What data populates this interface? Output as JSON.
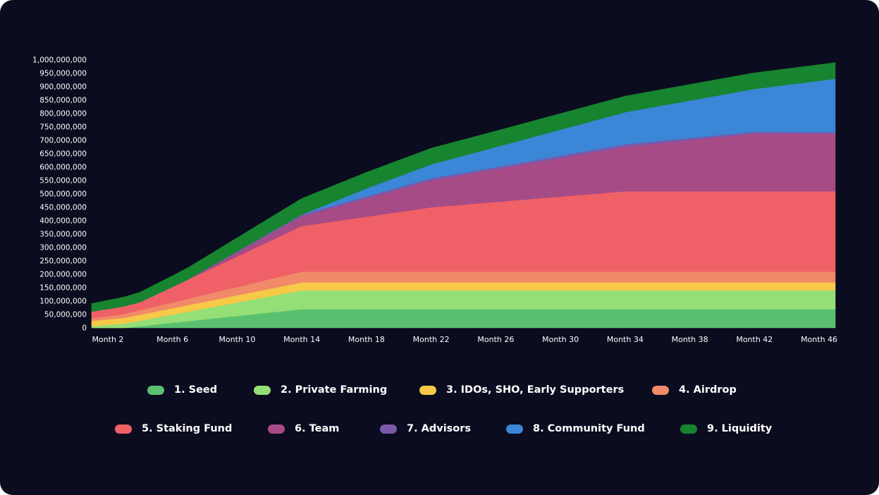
{
  "chart_data": {
    "type": "area",
    "stacked": true,
    "title": "",
    "xlabel": "",
    "ylabel": "",
    "grid": false,
    "x_start_month": 1,
    "x_end_month": 47,
    "ylim": [
      0,
      1000000000
    ],
    "y_ticks": [
      "1,000,000,000",
      "950,000,000",
      "900,000,000",
      "850,000,000",
      "800,000,000",
      "750,000,000",
      "700,000,000",
      "650,000,000",
      "600,000,000",
      "550,000,000",
      "500,000,000",
      "450,000,000",
      "400,000,000",
      "350,000,000",
      "300,000,000",
      "250,000,000",
      "200,000,000",
      "150,000,000",
      "100,000,000",
      "50,000,000",
      "0"
    ],
    "x_ticks": [
      "Month 2",
      "Month 6",
      "Month 10",
      "Month 14",
      "Month 18",
      "Month 22",
      "Month 26",
      "Month 30",
      "Month 34",
      "Month 38",
      "Month 42",
      "Month 46"
    ],
    "x_tick_months": [
      2,
      6,
      10,
      14,
      18,
      22,
      26,
      30,
      34,
      38,
      42,
      46
    ],
    "series": [
      {
        "name": "1. Seed",
        "color": "#5ac06f",
        "knots": [
          [
            1,
            0
          ],
          [
            3,
            0
          ],
          [
            14,
            70000000
          ],
          [
            47,
            70000000
          ]
        ]
      },
      {
        "name": "2. Private Farming",
        "color": "#94df76",
        "knots": [
          [
            1,
            6000000
          ],
          [
            14,
            70000000
          ],
          [
            47,
            70000000
          ]
        ]
      },
      {
        "name": "3. IDOs, SHO, Early Supporters",
        "color": "#f7c948",
        "knots": [
          [
            1,
            20000000
          ],
          [
            14,
            30000000
          ],
          [
            47,
            30000000
          ]
        ]
      },
      {
        "name": "4. Airdrop",
        "color": "#f08a68",
        "knots": [
          [
            1,
            10000000
          ],
          [
            14,
            40000000
          ],
          [
            47,
            40000000
          ]
        ]
      },
      {
        "name": "5. Staking Fund",
        "color": "#ef6167",
        "knots": [
          [
            1,
            25000000
          ],
          [
            4,
            30000000
          ],
          [
            14,
            170000000
          ],
          [
            22,
            240000000
          ],
          [
            34,
            300000000
          ],
          [
            47,
            300000000
          ]
        ]
      },
      {
        "name": "6. Team",
        "color": "#a74b86",
        "knots": [
          [
            1,
            0
          ],
          [
            7,
            0
          ],
          [
            14,
            35000000
          ],
          [
            22,
            100000000
          ],
          [
            34,
            165000000
          ],
          [
            42,
            215000000
          ],
          [
            47,
            215000000
          ]
        ]
      },
      {
        "name": "7. Advisors",
        "color": "#7c58a8",
        "knots": [
          [
            1,
            0
          ],
          [
            6,
            0
          ],
          [
            14,
            8000000
          ],
          [
            26,
            8000000
          ],
          [
            34,
            10000000
          ],
          [
            47,
            5000000
          ]
        ]
      },
      {
        "name": "8. Community Fund",
        "color": "#3b86d6",
        "knots": [
          [
            1,
            0
          ],
          [
            14,
            0
          ],
          [
            18,
            30000000
          ],
          [
            26,
            75000000
          ],
          [
            34,
            120000000
          ],
          [
            42,
            160000000
          ],
          [
            47,
            200000000
          ]
        ]
      },
      {
        "name": "9. Liquidity",
        "color": "#17842f",
        "knots": [
          [
            1,
            30000000
          ],
          [
            14,
            60000000
          ],
          [
            30,
            60000000
          ],
          [
            47,
            60000000
          ]
        ]
      }
    ]
  },
  "legend": {
    "row1": [
      "1. Seed",
      "2. Private Farming",
      "3. IDOs, SHO, Early Supporters",
      "4. Airdrop"
    ],
    "row2": [
      "5. Staking Fund",
      "6. Team",
      "7. Advisors",
      "8. Community Fund",
      "9. Liquidity"
    ]
  }
}
